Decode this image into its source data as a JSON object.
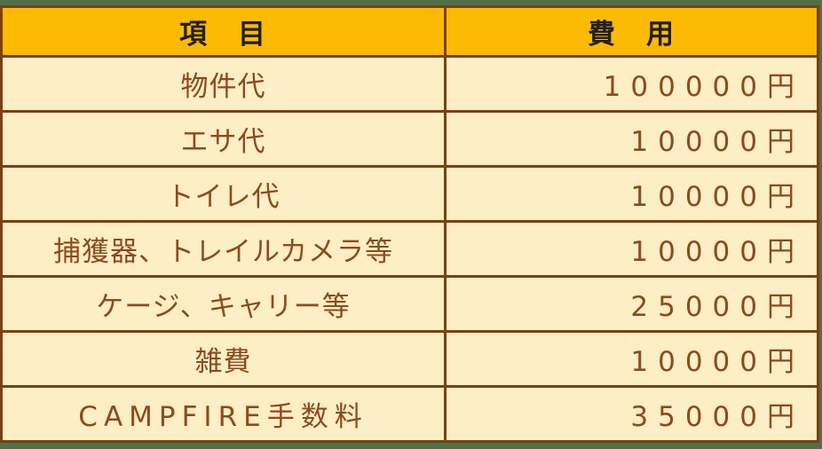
{
  "page": {
    "background_color": "#4E7148"
  },
  "table": {
    "border_color": "#7A4012",
    "header": {
      "item": "項　目",
      "cost": "費　用",
      "background_color": "#FCBA04",
      "text_color": "#221F1A"
    },
    "body_background_color": "#FCEEC5",
    "body_text_color": "#8C4A1E",
    "rows": [
      {
        "item": "物件代",
        "cost": "100000円"
      },
      {
        "item": "エサ代",
        "cost": "10000円"
      },
      {
        "item": "トイレ代",
        "cost": "10000円"
      },
      {
        "item": "捕獲器、トレイルカメラ等",
        "cost": "10000円"
      },
      {
        "item": "ケージ、キャリー等",
        "cost": "25000円"
      },
      {
        "item": "雑費",
        "cost": "10000円"
      },
      {
        "item": "CAMPFIRE手数料",
        "cost": "35000円"
      }
    ]
  },
  "chart_data": {
    "type": "table",
    "columns": [
      "項目",
      "費用"
    ],
    "categories": [
      "物件代",
      "エサ代",
      "トイレ代",
      "捕獲器、トレイルカメラ等",
      "ケージ、キャリー等",
      "雑費",
      "CAMPFIRE手数料"
    ],
    "values_yen": [
      100000,
      10000,
      10000,
      10000,
      25000,
      10000,
      35000
    ],
    "currency": "円",
    "title": "",
    "legend": false,
    "grid": true
  }
}
